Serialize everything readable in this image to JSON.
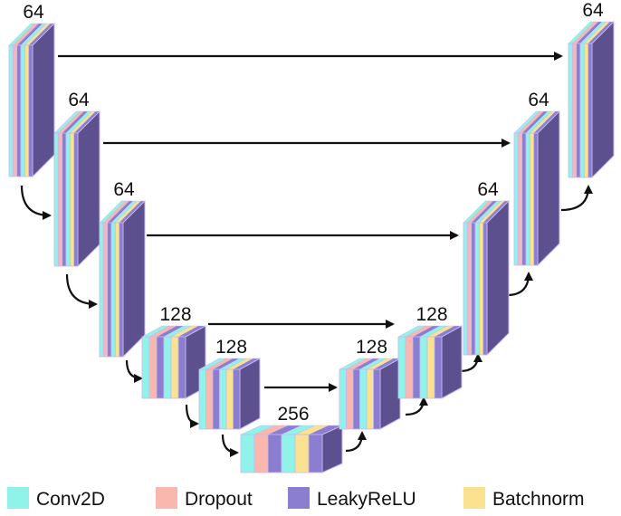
{
  "colors": {
    "Conv2D": "#8ff3ea",
    "Dropout": "#f9b7ae",
    "LeakyReLU": "#8b7ed0",
    "Batchnorm": "#fbe290",
    "side": "#5c508f",
    "edge": "#c8b8f0",
    "arrow": "#111111"
  },
  "layer_sequence": [
    "Conv2D",
    "Dropout",
    "LeakyReLU",
    "Conv2D",
    "Batchnorm",
    "LeakyReLU"
  ],
  "blocks": [
    {
      "label": "64"
    },
    {
      "label": "64"
    },
    {
      "label": "64"
    },
    {
      "label": "128"
    },
    {
      "label": "128"
    },
    {
      "label": "256"
    },
    {
      "label": "128"
    },
    {
      "label": "128"
    },
    {
      "label": "64"
    },
    {
      "label": "64"
    },
    {
      "label": "64"
    }
  ],
  "legend": [
    {
      "name": "Conv2D",
      "label": "Conv2D"
    },
    {
      "name": "Dropout",
      "label": "Dropout"
    },
    {
      "name": "LeakyReLU",
      "label": "LeakyReLU"
    },
    {
      "name": "Batchnorm",
      "label": "Batchnorm"
    }
  ]
}
